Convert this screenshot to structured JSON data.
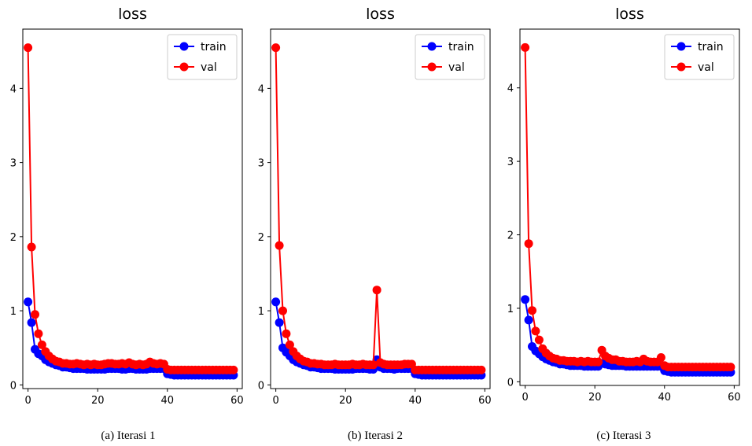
{
  "chart_data": [
    {
      "type": "line",
      "title": "loss",
      "caption": "(a)  Iterasi 1",
      "xlim": [
        -1.5,
        61.5
      ],
      "ylim": [
        -0.05,
        4.8
      ],
      "xticks": [
        0,
        20,
        40,
        60
      ],
      "yticks": [
        0,
        1,
        2,
        3,
        4
      ],
      "legend": "top-right",
      "series": [
        {
          "name": "train",
          "color": "#0000ff",
          "values": [
            1.12,
            0.84,
            0.48,
            0.42,
            0.39,
            0.34,
            0.31,
            0.29,
            0.27,
            0.26,
            0.24,
            0.24,
            0.23,
            0.22,
            0.22,
            0.22,
            0.22,
            0.21,
            0.21,
            0.21,
            0.21,
            0.21,
            0.21,
            0.22,
            0.22,
            0.22,
            0.22,
            0.21,
            0.21,
            0.22,
            0.22,
            0.21,
            0.21,
            0.21,
            0.21,
            0.22,
            0.22,
            0.22,
            0.22,
            0.22,
            0.15,
            0.14,
            0.13,
            0.13,
            0.13,
            0.13,
            0.13,
            0.13,
            0.13,
            0.13,
            0.13,
            0.13,
            0.13,
            0.13,
            0.13,
            0.13,
            0.13,
            0.13,
            0.13,
            0.13
          ]
        },
        {
          "name": "val",
          "color": "#ff0000",
          "values": [
            4.55,
            1.86,
            0.95,
            0.69,
            0.54,
            0.45,
            0.39,
            0.35,
            0.32,
            0.31,
            0.29,
            0.29,
            0.28,
            0.28,
            0.29,
            0.28,
            0.27,
            0.28,
            0.27,
            0.28,
            0.27,
            0.27,
            0.28,
            0.29,
            0.29,
            0.28,
            0.28,
            0.29,
            0.28,
            0.3,
            0.28,
            0.27,
            0.28,
            0.27,
            0.28,
            0.31,
            0.29,
            0.28,
            0.29,
            0.28,
            0.21,
            0.2,
            0.2,
            0.2,
            0.2,
            0.2,
            0.2,
            0.2,
            0.2,
            0.2,
            0.2,
            0.2,
            0.2,
            0.2,
            0.2,
            0.2,
            0.2,
            0.2,
            0.2,
            0.2
          ]
        }
      ]
    },
    {
      "type": "line",
      "title": "loss",
      "caption": "(b) Iterasi 2",
      "xlim": [
        -1.5,
        61.5
      ],
      "ylim": [
        -0.05,
        4.8
      ],
      "xticks": [
        0,
        20,
        40,
        60
      ],
      "yticks": [
        0,
        1,
        2,
        3,
        4
      ],
      "legend": "top-right",
      "series": [
        {
          "name": "train",
          "color": "#0000ff",
          "values": [
            1.12,
            0.84,
            0.5,
            0.44,
            0.39,
            0.34,
            0.31,
            0.29,
            0.27,
            0.26,
            0.24,
            0.24,
            0.23,
            0.22,
            0.22,
            0.22,
            0.22,
            0.21,
            0.21,
            0.21,
            0.21,
            0.21,
            0.21,
            0.22,
            0.22,
            0.22,
            0.22,
            0.21,
            0.21,
            0.34,
            0.24,
            0.22,
            0.22,
            0.22,
            0.21,
            0.22,
            0.22,
            0.22,
            0.22,
            0.22,
            0.15,
            0.14,
            0.13,
            0.13,
            0.13,
            0.13,
            0.13,
            0.13,
            0.13,
            0.13,
            0.13,
            0.13,
            0.13,
            0.13,
            0.13,
            0.13,
            0.13,
            0.13,
            0.13,
            0.13
          ]
        },
        {
          "name": "val",
          "color": "#ff0000",
          "values": [
            4.55,
            1.88,
            1.0,
            0.69,
            0.54,
            0.45,
            0.39,
            0.35,
            0.32,
            0.31,
            0.29,
            0.29,
            0.28,
            0.28,
            0.27,
            0.27,
            0.27,
            0.28,
            0.27,
            0.27,
            0.27,
            0.27,
            0.28,
            0.27,
            0.27,
            0.28,
            0.27,
            0.27,
            0.27,
            1.28,
            0.3,
            0.28,
            0.27,
            0.27,
            0.27,
            0.27,
            0.27,
            0.28,
            0.28,
            0.28,
            0.2,
            0.2,
            0.2,
            0.2,
            0.2,
            0.2,
            0.2,
            0.2,
            0.2,
            0.2,
            0.2,
            0.2,
            0.2,
            0.2,
            0.2,
            0.2,
            0.2,
            0.2,
            0.2,
            0.2
          ]
        }
      ]
    },
    {
      "type": "line",
      "title": "loss",
      "caption": "(c) Iterasi 3",
      "xlim": [
        -1.5,
        61.5
      ],
      "ylim": [
        -0.05,
        4.8
      ],
      "xticks": [
        0,
        20,
        40,
        60
      ],
      "yticks": [
        0,
        1,
        2,
        3,
        4
      ],
      "legend": "top-right",
      "series": [
        {
          "name": "train",
          "color": "#0000ff",
          "values": [
            1.12,
            0.84,
            0.48,
            0.42,
            0.38,
            0.34,
            0.31,
            0.29,
            0.27,
            0.26,
            0.24,
            0.24,
            0.23,
            0.22,
            0.22,
            0.22,
            0.22,
            0.21,
            0.21,
            0.21,
            0.21,
            0.21,
            0.25,
            0.24,
            0.23,
            0.22,
            0.22,
            0.22,
            0.22,
            0.21,
            0.21,
            0.21,
            0.21,
            0.21,
            0.21,
            0.21,
            0.21,
            0.21,
            0.21,
            0.21,
            0.15,
            0.14,
            0.13,
            0.13,
            0.13,
            0.13,
            0.13,
            0.13,
            0.13,
            0.13,
            0.13,
            0.13,
            0.13,
            0.13,
            0.13,
            0.13,
            0.13,
            0.13,
            0.13,
            0.13
          ]
        },
        {
          "name": "val",
          "color": "#ff0000",
          "values": [
            4.55,
            1.88,
            0.97,
            0.69,
            0.57,
            0.45,
            0.39,
            0.35,
            0.32,
            0.31,
            0.29,
            0.29,
            0.28,
            0.28,
            0.28,
            0.27,
            0.28,
            0.27,
            0.28,
            0.27,
            0.27,
            0.27,
            0.43,
            0.35,
            0.32,
            0.3,
            0.3,
            0.28,
            0.28,
            0.27,
            0.27,
            0.27,
            0.28,
            0.27,
            0.31,
            0.28,
            0.27,
            0.27,
            0.27,
            0.33,
            0.22,
            0.2,
            0.2,
            0.2,
            0.2,
            0.2,
            0.2,
            0.2,
            0.2,
            0.2,
            0.2,
            0.2,
            0.2,
            0.2,
            0.2,
            0.2,
            0.2,
            0.2,
            0.2,
            0.2
          ]
        }
      ]
    }
  ]
}
